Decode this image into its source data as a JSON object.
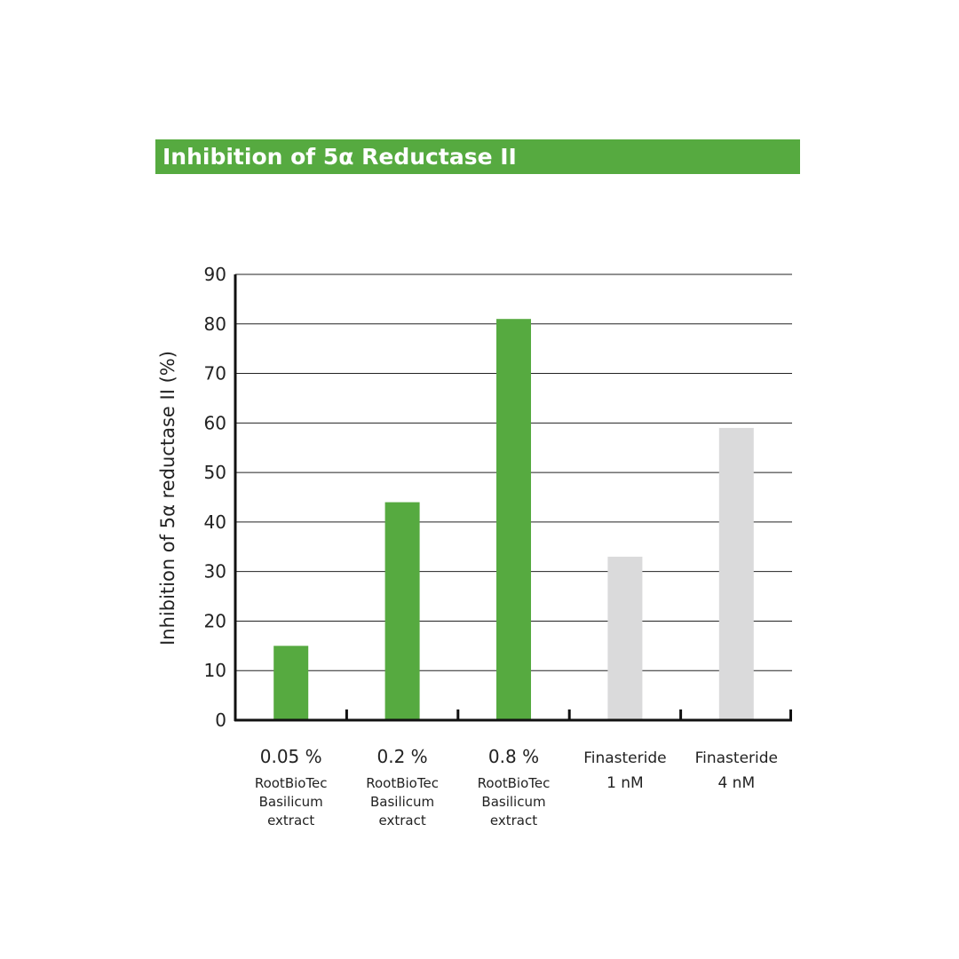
{
  "title": "Inhibition of 5α Reductase II",
  "colors": {
    "title_bar": "#56aa40",
    "extract_bar": "#56aa40",
    "control_bar": "#dadadb",
    "axis": "#111111"
  },
  "chart_data": {
    "type": "bar",
    "title": "Inhibition of 5α Reductase II",
    "ylabel": "Inhibition of 5α reductase II (%)",
    "xlabel": "",
    "ylim": [
      0,
      90
    ],
    "yticks": [
      "0",
      "10",
      "20",
      "30",
      "40",
      "50",
      "60",
      "70",
      "80",
      "90"
    ],
    "grid": true,
    "categories": [
      {
        "line1": "0.05 %",
        "line2": "RootBioTec",
        "line3": "Basilicum",
        "line4": "extract"
      },
      {
        "line1": "0.2 %",
        "line2": "RootBioTec",
        "line3": "Basilicum",
        "line4": "extract"
      },
      {
        "line1": "0.8 %",
        "line2": "RootBioTec",
        "line3": "Basilicum",
        "line4": "extract"
      },
      {
        "line1": "Finasteride",
        "line2": "1 nM",
        "line3": "",
        "line4": ""
      },
      {
        "line1": "Finasteride",
        "line2": "4 nM",
        "line3": "",
        "line4": ""
      }
    ],
    "values": [
      15,
      44,
      81,
      33,
      59
    ],
    "bar_colors": [
      "#56aa40",
      "#56aa40",
      "#56aa40",
      "#dadadb",
      "#dadadb"
    ]
  }
}
